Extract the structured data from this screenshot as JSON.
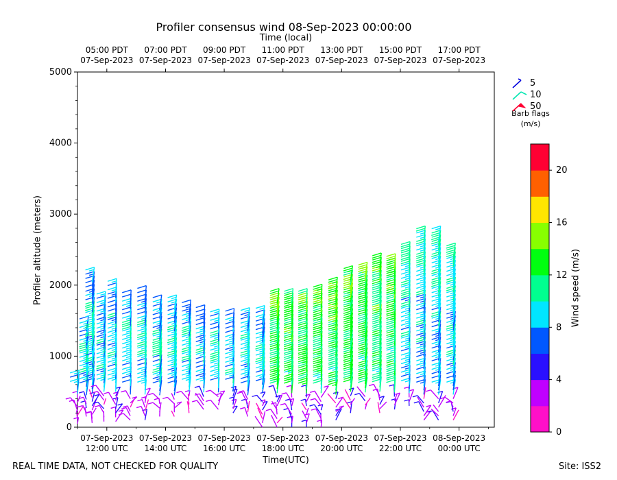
{
  "chart_data": {
    "type": "wind-barb",
    "title": "Profiler consensus wind 08-Sep-2023 00:00:00",
    "xlabel": "Time(UTC)",
    "x2label": "Time (local)",
    "ylabel": "Profiler altitude (meters)",
    "ylim": [
      0,
      5000
    ],
    "yticks": [
      0,
      1000,
      2000,
      3000,
      4000,
      5000
    ],
    "xlim_hours_utc": [
      11,
      25.2
    ],
    "utc_ticks": [
      {
        "hour": 12,
        "time": "12:00 UTC",
        "date": "07-Sep-2023"
      },
      {
        "hour": 14,
        "time": "14:00 UTC",
        "date": "07-Sep-2023"
      },
      {
        "hour": 16,
        "time": "16:00 UTC",
        "date": "07-Sep-2023"
      },
      {
        "hour": 18,
        "time": "18:00 UTC",
        "date": "07-Sep-2023"
      },
      {
        "hour": 20,
        "time": "20:00 UTC",
        "date": "07-Sep-2023"
      },
      {
        "hour": 22,
        "time": "22:00 UTC",
        "date": "07-Sep-2023"
      },
      {
        "hour": 24,
        "time": "00:00 UTC",
        "date": "08-Sep-2023"
      }
    ],
    "local_ticks": [
      {
        "hour": 12,
        "time": "05:00 PDT",
        "date": "07-Sep-2023"
      },
      {
        "hour": 14,
        "time": "07:00 PDT",
        "date": "07-Sep-2023"
      },
      {
        "hour": 16,
        "time": "09:00 PDT",
        "date": "07-Sep-2023"
      },
      {
        "hour": 18,
        "time": "11:00 PDT",
        "date": "07-Sep-2023"
      },
      {
        "hour": 20,
        "time": "13:00 PDT",
        "date": "07-Sep-2023"
      },
      {
        "hour": 22,
        "time": "15:00 PDT",
        "date": "07-Sep-2023"
      },
      {
        "hour": 24,
        "time": "17:00 PDT",
        "date": "07-Sep-2023"
      }
    ],
    "profiles": [
      {
        "hour": 11.0,
        "top": 600,
        "bottom": 50
      },
      {
        "hour": 11.3,
        "top": 1380,
        "bottom": 150
      },
      {
        "hour": 11.5,
        "top": 2080,
        "bottom": 60
      },
      {
        "hour": 11.9,
        "top": 1750,
        "bottom": 80
      },
      {
        "hour": 12.3,
        "top": 1880,
        "bottom": 80
      },
      {
        "hour": 12.8,
        "top": 1750,
        "bottom": 100
      },
      {
        "hour": 13.3,
        "top": 1780,
        "bottom": 100
      },
      {
        "hour": 13.8,
        "top": 1700,
        "bottom": 150
      },
      {
        "hour": 14.3,
        "top": 1700,
        "bottom": 150
      },
      {
        "hour": 14.8,
        "top": 1580,
        "bottom": 200
      },
      {
        "hour": 15.3,
        "top": 1530,
        "bottom": 250
      },
      {
        "hour": 15.8,
        "top": 1460,
        "bottom": 250
      },
      {
        "hour": 16.3,
        "top": 1460,
        "bottom": 200
      },
      {
        "hour": 16.8,
        "top": 1500,
        "bottom": 150
      },
      {
        "hour": 17.3,
        "top": 1550,
        "bottom": 0
      },
      {
        "hour": 17.8,
        "top": 1750,
        "bottom": 0
      },
      {
        "hour": 18.3,
        "top": 1780,
        "bottom": 0
      },
      {
        "hour": 18.8,
        "top": 1780,
        "bottom": 0
      },
      {
        "hour": 19.3,
        "top": 1830,
        "bottom": 0
      },
      {
        "hour": 19.8,
        "top": 1900,
        "bottom": 100
      },
      {
        "hour": 20.3,
        "top": 2080,
        "bottom": 200
      },
      {
        "hour": 20.8,
        "top": 2150,
        "bottom": 250
      },
      {
        "hour": 21.3,
        "top": 2280,
        "bottom": 200
      },
      {
        "hour": 21.8,
        "top": 2280,
        "bottom": 250
      },
      {
        "hour": 22.3,
        "top": 2400,
        "bottom": 300
      },
      {
        "hour": 22.8,
        "top": 2650,
        "bottom": 100
      },
      {
        "hour": 23.3,
        "top": 2650,
        "bottom": 100
      },
      {
        "hour": 23.8,
        "top": 2400,
        "bottom": 100
      }
    ],
    "legend": {
      "title_line1": "Barb flags",
      "title_line2": "(m/s)",
      "entries": [
        {
          "label": "5",
          "color": "#0000dd"
        },
        {
          "label": "10",
          "color": "#00e6b0"
        },
        {
          "label": "50",
          "color": "#ff0033"
        }
      ]
    },
    "colorbar": {
      "label": "Wind speed (m/s)",
      "min": 0,
      "max": 22,
      "step": 2,
      "ticks": [
        0,
        4,
        8,
        12,
        16,
        20
      ],
      "colors": [
        "#ff10c8",
        "#c000ff",
        "#2a10ff",
        "#0058ff",
        "#00e6ff",
        "#00ff90",
        "#00ff10",
        "#88ff00",
        "#ffe600",
        "#ff6000",
        "#ff0033"
      ]
    }
  },
  "footer": {
    "notice": "REAL TIME DATA, NOT CHECKED FOR QUALITY",
    "site": "Site: ISS2"
  }
}
